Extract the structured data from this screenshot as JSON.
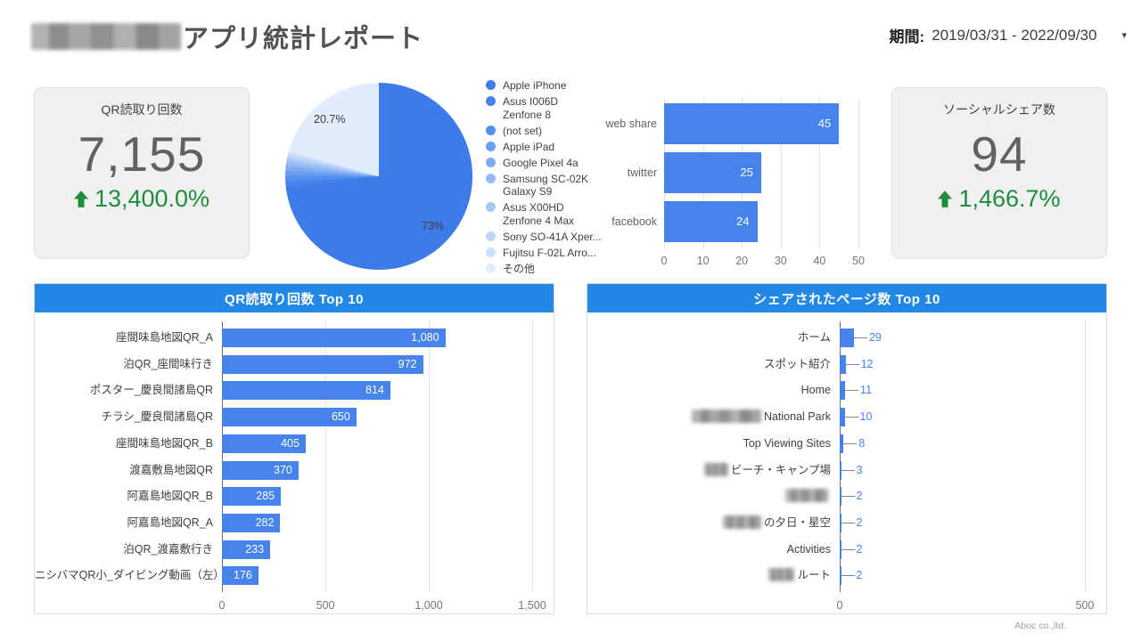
{
  "header": {
    "title_prefix_redacted": true,
    "title": "アプリ統計レポート",
    "period_label": "期間:",
    "period_value": "2019/03/31 - 2022/09/30"
  },
  "scorecards": [
    {
      "title": "QR読取り回数",
      "value": "7,155",
      "delta": "13,400.0%",
      "delta_direction": "up"
    },
    {
      "title": "ソーシャルシェア数",
      "value": "94",
      "delta": "1,466.7%",
      "delta_direction": "up"
    }
  ],
  "colors": {
    "panel_header_blue": "#2188E8",
    "bar_fill_blue": "#4684EC",
    "delta_green": "#1E8E3E",
    "outside_value_blue": "#4285F4",
    "card_background": "#F0F0F0"
  },
  "chart_data": [
    {
      "id": "device-share-pie",
      "type": "pie",
      "labels": [
        "Apple iPhone",
        "Asus I006D\nZenfone 8",
        "(not set)",
        "Apple iPad",
        "Google Pixel 4a",
        "Samsung SC-02K\nGalaxy S9",
        "Asus X00HD\nZenfone 4 Max",
        "Sony SO-41A Xper...",
        "Fujitsu F-02L Arro...",
        "その他"
      ],
      "values_pct": [
        73,
        1.1,
        1.0,
        0.9,
        0.8,
        0.75,
        0.65,
        0.6,
        0.5,
        20.7
      ],
      "colors": [
        "#3D7CE8",
        "#4682EA",
        "#5590EE",
        "#699EF0",
        "#7FACF3",
        "#95BAF5",
        "#A9C7F7",
        "#BDD4F9",
        "#D0E0FB",
        "#E2ECFD"
      ],
      "slice_label_main": "73%",
      "slice_label_others": "20.7%",
      "legend_position": "right"
    },
    {
      "id": "social-share-bar",
      "type": "bar",
      "orientation": "horizontal",
      "categories": [
        "web share",
        "twitter",
        "facebook"
      ],
      "values": [
        45,
        25,
        24
      ],
      "xlim": [
        0,
        50
      ],
      "xticks": [
        "0",
        "10",
        "20",
        "30",
        "40",
        "50"
      ],
      "tick_values": [
        0,
        10,
        20,
        30,
        40,
        50
      ],
      "grid": true
    },
    {
      "id": "qr-top10",
      "title": "QR読取り回数 Top 10",
      "type": "bar",
      "orientation": "horizontal",
      "categories": [
        "座間味島地図QR_A",
        "泊QR_座間味行き",
        "ポスター_慶良間諸島QR",
        "チラシ_慶良間諸島QR",
        "座間味島地図QR_B",
        "渡嘉敷島地図QR",
        "阿嘉島地図QR_B",
        "阿嘉島地図QR_A",
        "泊QR_渡嘉敷行き",
        "ニシバマQR小_ダイビング動画（左）"
      ],
      "values": [
        1080,
        972,
        814,
        650,
        405,
        370,
        285,
        282,
        233,
        176
      ],
      "value_labels": [
        "1,080",
        "972",
        "814",
        "650",
        "405",
        "370",
        "285",
        "282",
        "233",
        "176"
      ],
      "xlim": [
        0,
        1500
      ],
      "xticks": [
        "0",
        "500",
        "1,000",
        "1,500"
      ],
      "tick_values": [
        0,
        500,
        1000,
        1500
      ],
      "grid": true
    },
    {
      "id": "pages-top10",
      "title": "シェアされたページ数 Top 10",
      "type": "bar",
      "orientation": "horizontal",
      "categories": [
        {
          "text": "ホーム"
        },
        {
          "text": "スポット紹介"
        },
        {
          "text": "Home"
        },
        {
          "text": "National Park",
          "redact_width": 78
        },
        {
          "text": "Top Viewing Sites"
        },
        {
          "text": "ビーチ・キャンプ場",
          "redact_width": 27
        },
        {
          "text": "",
          "redact_width": 48
        },
        {
          "text": "の夕日・星空",
          "redact_width": 43
        },
        {
          "text": "Activities"
        },
        {
          "text": "ルート",
          "redact_width": 29
        }
      ],
      "values": [
        29,
        12,
        11,
        10,
        8,
        3,
        2,
        2,
        2,
        2
      ],
      "xlim": [
        0,
        500
      ],
      "xticks": [
        "0",
        "500"
      ],
      "tick_values": [
        0,
        500
      ],
      "grid": true
    }
  ],
  "footer": {
    "company": "Aboc co.,ltd."
  }
}
